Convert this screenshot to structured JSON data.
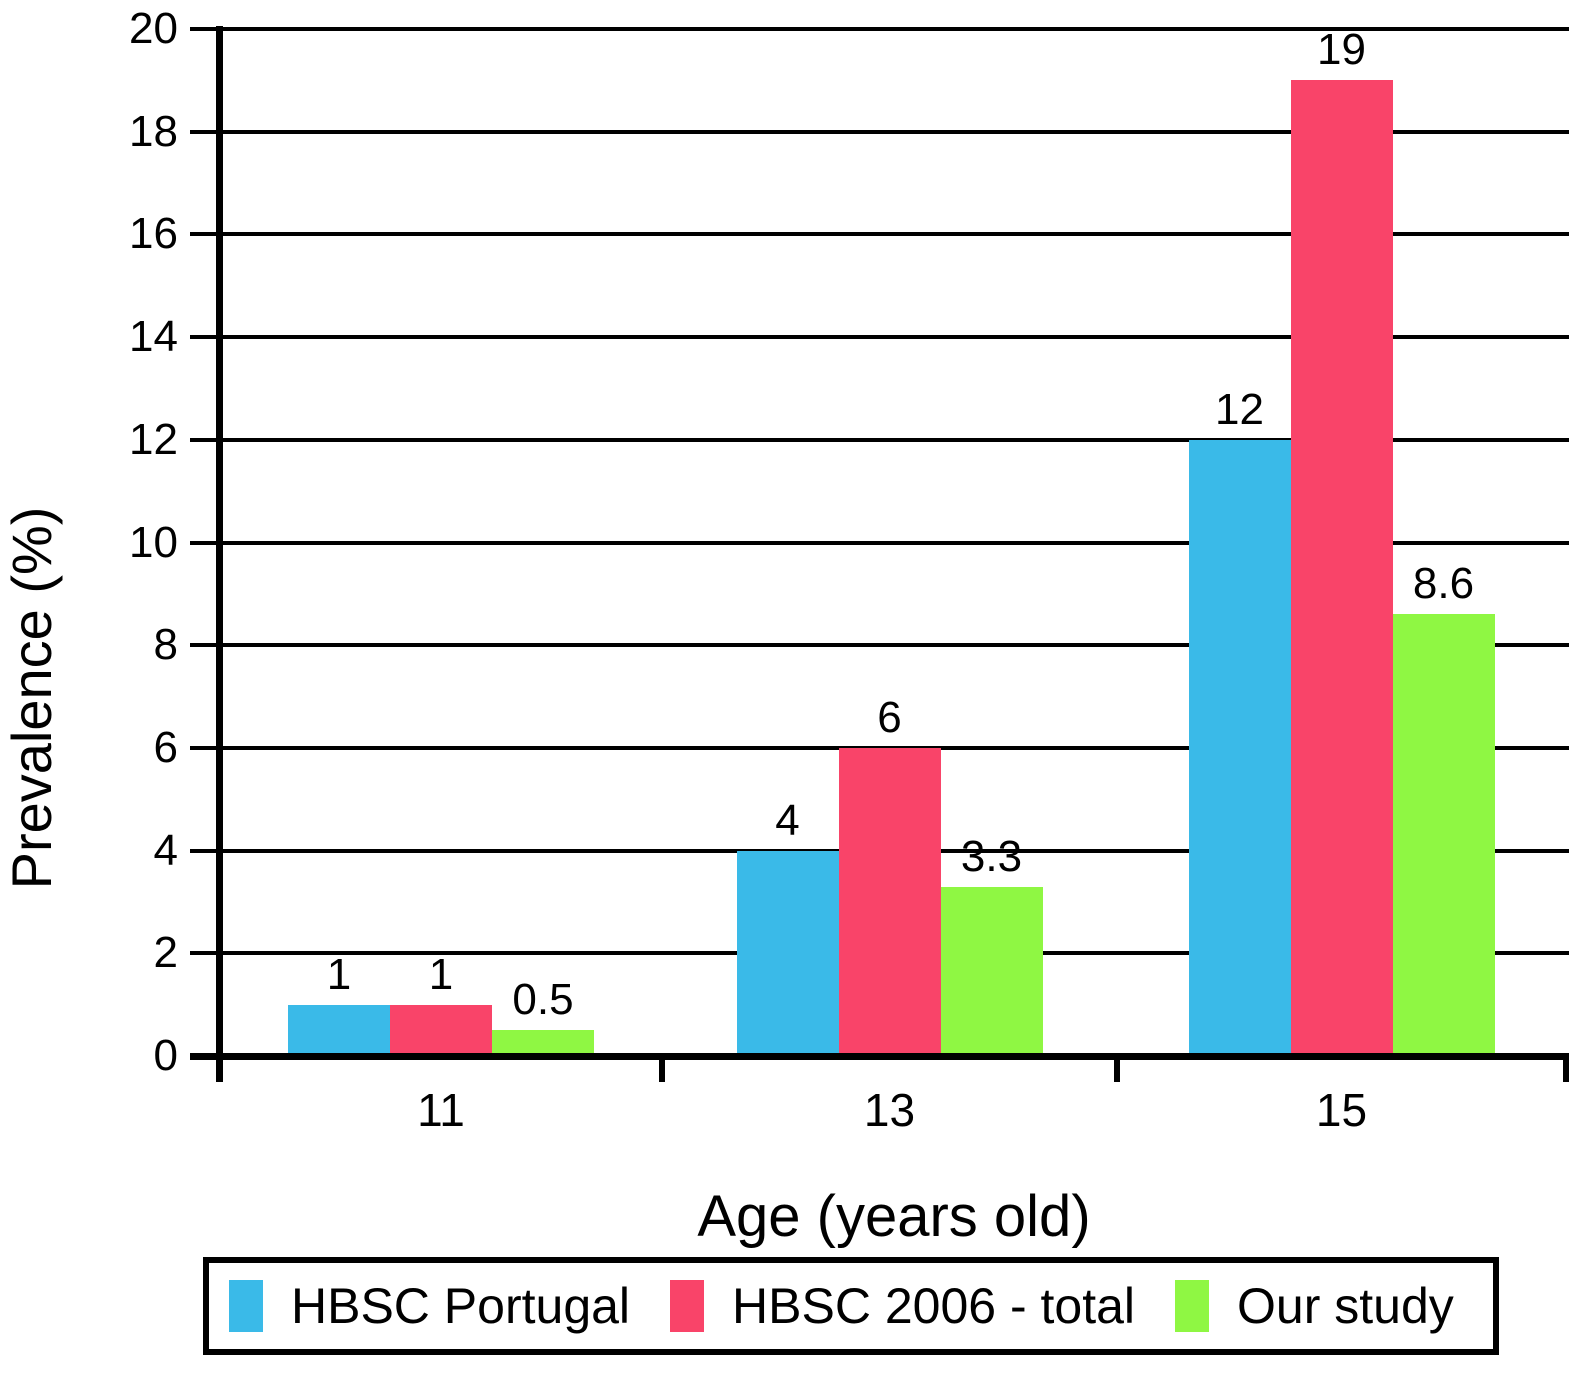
{
  "chart_data": {
    "type": "bar",
    "categories": [
      "11",
      "13",
      "15"
    ],
    "series": [
      {
        "name": "HBSC Portugal",
        "color": "#3ABAE8",
        "values": [
          1,
          4,
          12
        ],
        "data_labels": [
          "1",
          "4",
          "12"
        ]
      },
      {
        "name": "HBSC 2006 - total",
        "color": "#F94469",
        "values": [
          1,
          6,
          19
        ],
        "data_labels": [
          "1",
          "6",
          "19"
        ]
      },
      {
        "name": "Our study",
        "color": "#8FF743",
        "values": [
          0.5,
          3.3,
          8.6
        ],
        "data_labels": [
          "0.5",
          "3.3",
          "8.6"
        ]
      }
    ],
    "xlabel": "Age (years old)",
    "ylabel": "Prevalence (%)",
    "ylim": [
      0,
      20
    ],
    "ytick_interval": 2,
    "ytick_labels": [
      "0",
      "2",
      "4",
      "6",
      "8",
      "10",
      "12",
      "14",
      "16",
      "18",
      "20"
    ],
    "grid": "horizontal",
    "grid_color": "#000000",
    "axis_color": "#000000",
    "text_color": "#000000",
    "background": "#FFFFFF",
    "legend_position": "bottom",
    "data_label_position": "outside-end"
  }
}
